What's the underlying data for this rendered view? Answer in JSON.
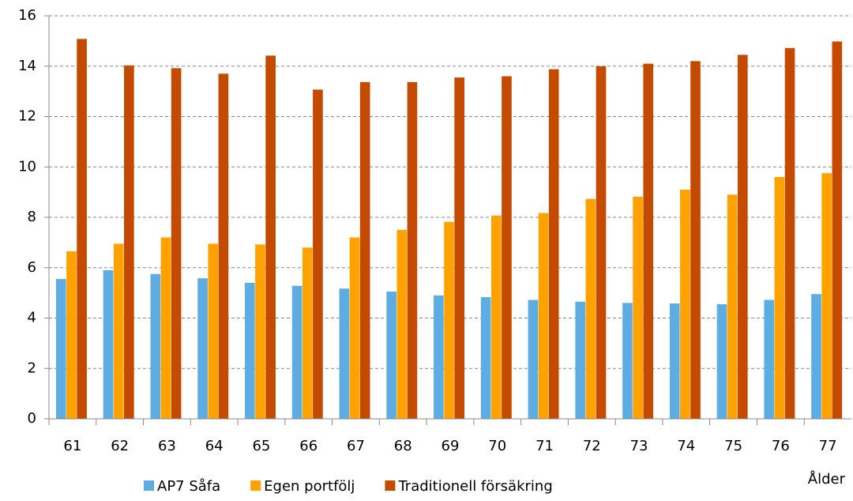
{
  "chart_data": {
    "type": "bar",
    "x_label": "Ålder",
    "categories": [
      "61",
      "62",
      "63",
      "64",
      "65",
      "66",
      "67",
      "68",
      "69",
      "70",
      "71",
      "72",
      "73",
      "74",
      "75",
      "76",
      "77"
    ],
    "series": [
      {
        "name": "AP7 Såfa",
        "color": "#5dade2",
        "values": [
          5.55,
          5.9,
          5.75,
          5.58,
          5.4,
          5.28,
          5.17,
          5.05,
          4.9,
          4.83,
          4.72,
          4.65,
          4.6,
          4.58,
          4.55,
          4.72,
          4.95
        ]
      },
      {
        "name": "Egen portfölj",
        "color": "#ffa200",
        "values": [
          6.65,
          6.95,
          7.2,
          6.95,
          6.92,
          6.8,
          7.2,
          7.5,
          7.82,
          8.07,
          8.17,
          8.73,
          8.82,
          9.1,
          8.9,
          9.6,
          9.75
        ]
      },
      {
        "name": "Traditionell försäkring",
        "color": "#c44a00",
        "values": [
          15.08,
          14.03,
          13.92,
          13.7,
          14.42,
          13.07,
          13.37,
          13.37,
          13.55,
          13.6,
          13.88,
          14.0,
          14.1,
          14.2,
          14.45,
          14.72,
          14.98
        ]
      }
    ],
    "ylim": [
      0,
      16
    ],
    "yticks": [
      0,
      2,
      4,
      6,
      8,
      10,
      12,
      14,
      16
    ],
    "grid": true
  }
}
